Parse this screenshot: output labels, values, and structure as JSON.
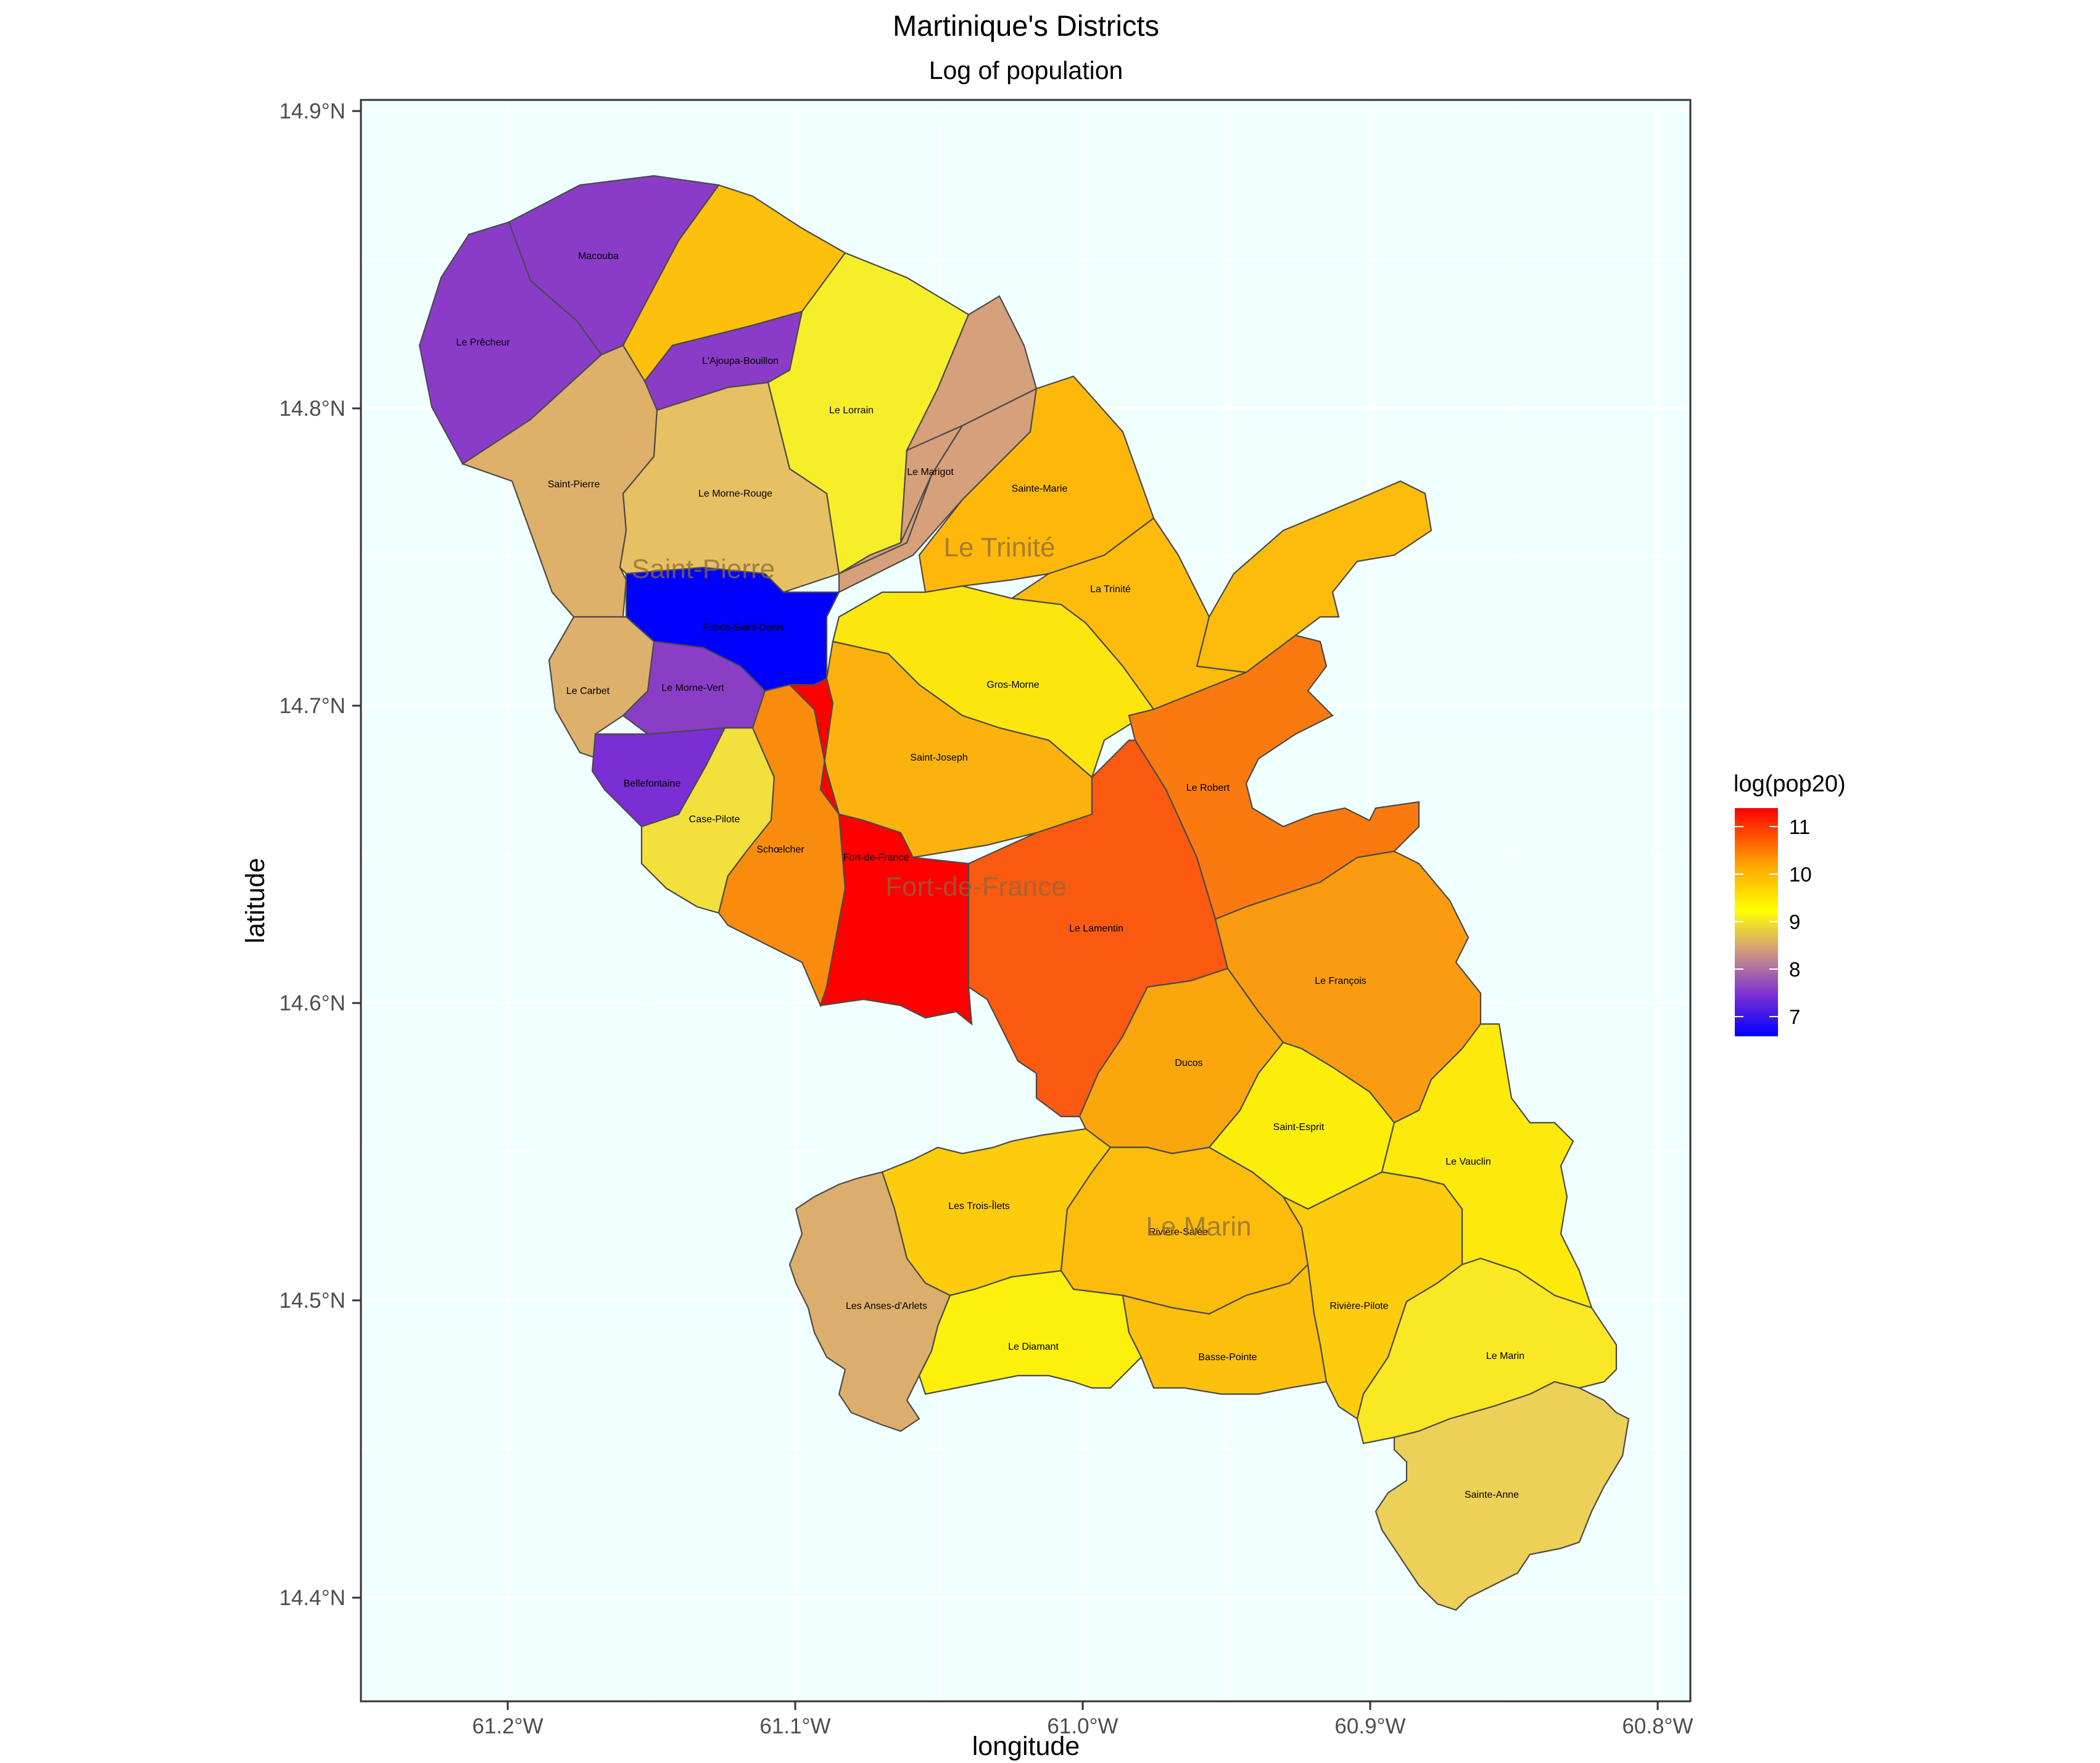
{
  "title": "Martinique's Districts",
  "subtitle": "Log of population",
  "axes": {
    "xlabel": "longitude",
    "ylabel": "latitude",
    "xticks": [
      "61.2°W",
      "61.1°W",
      "61.0°W",
      "60.9°W",
      "60.8°W"
    ],
    "yticks": [
      "14.9°N",
      "14.8°N",
      "14.7°N",
      "14.6°N",
      "14.5°N",
      "14.4°N"
    ]
  },
  "legend": {
    "title": "log(pop20)",
    "ticks": [
      "11",
      "10",
      "9",
      "8",
      "7"
    ],
    "placement": "right",
    "colors": [
      "#0000ff",
      "#7b2ed6",
      "#d49e7a",
      "#ffff00",
      "#ffa500",
      "#ff0000"
    ]
  },
  "colors": {
    "panel_background": "#f0ffff",
    "grid": "#ffffff",
    "border": "#333333"
  },
  "districts": [
    {
      "name": "Le Prêcheur",
      "color": "#8a3cc9"
    },
    {
      "name": "Macouba",
      "color": "#8a3cc9"
    },
    {
      "name": "L'Ajoupa-Bouillon",
      "color": "#8a3cc9"
    },
    {
      "name": "Le Lorrain",
      "color": "#f7ee2a"
    },
    {
      "name": "Le Marigot",
      "color": "#d6a07a"
    },
    {
      "name": "Saint-Pierre",
      "color": "#dfb06a"
    },
    {
      "name": "Le Morne-Rouge",
      "color": "#e6c062"
    },
    {
      "name": "Sainte-Marie",
      "color": "#ffb80a"
    },
    {
      "name": "La Trinité",
      "color": "#fdbc0c"
    },
    {
      "name": "Fonds-Saint-Denis",
      "color": "#0000ff"
    },
    {
      "name": "Gros-Morne",
      "color": "#fde60e"
    },
    {
      "name": "Le Carbet",
      "color": "#ddb06c"
    },
    {
      "name": "Le Morne-Vert",
      "color": "#8a3ec6"
    },
    {
      "name": "Bellefontaine",
      "color": "#7a2ed4"
    },
    {
      "name": "Case-Pilote",
      "color": "#f2e03c"
    },
    {
      "name": "Saint-Joseph",
      "color": "#fbb20c"
    },
    {
      "name": "Schœlcher",
      "color": "#f98c0c"
    },
    {
      "name": "Fort-de-France",
      "color": "#ff0000"
    },
    {
      "name": "Le Robert",
      "color": "#fb7a10"
    },
    {
      "name": "Le Lamentin",
      "color": "#fb5a10"
    },
    {
      "name": "Le François",
      "color": "#fb9c10"
    },
    {
      "name": "Ducos",
      "color": "#fba60c"
    },
    {
      "name": "Saint-Esprit",
      "color": "#fdee0a"
    },
    {
      "name": "Le Vauclin",
      "color": "#fdea0c"
    },
    {
      "name": "Les Trois-Îlets",
      "color": "#fdcc0c"
    },
    {
      "name": "Rivière-Salée",
      "color": "#fdbc0c"
    },
    {
      "name": "Rivière-Pilote",
      "color": "#fdcc0c"
    },
    {
      "name": "Les Anses-d'Arlets",
      "color": "#dcae6c"
    },
    {
      "name": "Le Diamant",
      "color": "#fdf00c"
    },
    {
      "name": "Basse-Pointe",
      "color": "#fdc00c"
    },
    {
      "name": "Le Marin",
      "color": "#fbe824"
    },
    {
      "name": "Sainte-Anne",
      "color": "#ecd058"
    }
  ],
  "regions": [
    "Saint-Pierre",
    "Le Trinité",
    "Fort-de-France",
    "Le Marin"
  ]
}
